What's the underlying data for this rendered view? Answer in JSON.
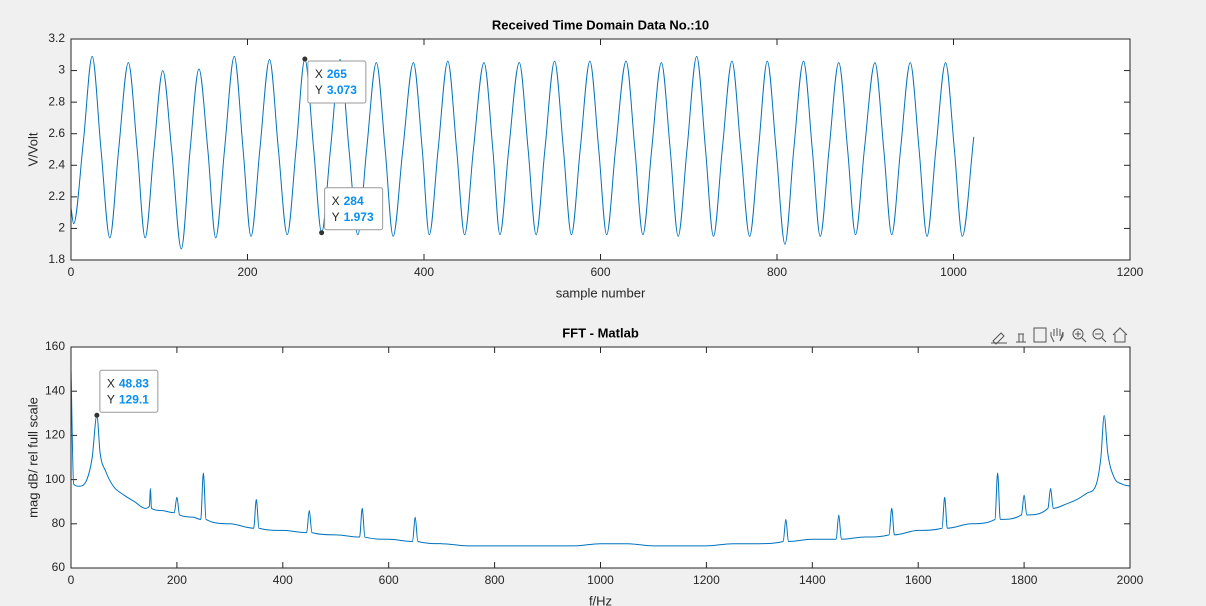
{
  "chart_data": [
    {
      "type": "line",
      "title": "Received Time Domain Data No.:10",
      "x_label": "sample number",
      "y_label": "V/Volt",
      "x": [
        0,
        3,
        14,
        24,
        34,
        44,
        54,
        65,
        75,
        84,
        94,
        104,
        114,
        125,
        135,
        145,
        155,
        164,
        174,
        185,
        195,
        204,
        214,
        225,
        235,
        245,
        255,
        265,
        275,
        284,
        294,
        305,
        315,
        325,
        335,
        346,
        356,
        365,
        376,
        388,
        398,
        406,
        416,
        427,
        437,
        446,
        456,
        468,
        478,
        486,
        496,
        508,
        518,
        527,
        537,
        548,
        558,
        567,
        577,
        588,
        598,
        607,
        617,
        629,
        639,
        648,
        658,
        669,
        679,
        688,
        698,
        709,
        719,
        728,
        738,
        749,
        759,
        769,
        779,
        789,
        799,
        809,
        819,
        830,
        840,
        849,
        859,
        870,
        880,
        889,
        899,
        911,
        921,
        930,
        940,
        951,
        961,
        970,
        980,
        991,
        1001,
        1010,
        1023
      ],
      "series": [
        {
          "color": "#0072bd",
          "values": [
            2.13,
            2.03,
            2.55,
            3.09,
            2.5,
            1.94,
            2.5,
            3.05,
            2.5,
            1.94,
            2.5,
            3.0,
            2.5,
            1.87,
            2.5,
            3.01,
            2.5,
            1.94,
            2.5,
            3.09,
            2.5,
            1.95,
            2.5,
            3.07,
            2.5,
            1.96,
            2.5,
            3.073,
            2.5,
            1.973,
            2.5,
            3.07,
            2.5,
            1.96,
            2.5,
            3.05,
            2.5,
            1.95,
            2.5,
            3.05,
            2.5,
            1.96,
            2.5,
            3.06,
            2.5,
            1.96,
            2.5,
            3.05,
            2.5,
            1.96,
            2.5,
            3.05,
            2.5,
            1.96,
            2.5,
            3.06,
            2.5,
            1.96,
            2.5,
            3.06,
            2.5,
            1.96,
            2.5,
            3.06,
            2.5,
            1.96,
            2.5,
            3.05,
            2.5,
            1.95,
            2.5,
            3.09,
            2.5,
            1.95,
            2.5,
            3.06,
            2.5,
            1.95,
            2.5,
            3.06,
            2.5,
            1.9,
            2.5,
            3.06,
            2.5,
            1.95,
            2.5,
            3.05,
            2.5,
            1.96,
            2.5,
            3.05,
            2.5,
            1.96,
            2.5,
            3.05,
            2.5,
            1.95,
            2.5,
            3.05,
            2.5,
            1.95,
            2.58
          ]
        }
      ],
      "xlim": [
        0,
        1200
      ],
      "xticks": [
        0,
        200,
        400,
        600,
        800,
        1000,
        1200
      ],
      "ylim": [
        1.8,
        3.2
      ],
      "yticks": [
        1.8,
        {
          "value": 2.0,
          "label": "2"
        },
        2.2,
        2.4,
        2.6,
        2.8,
        {
          "value": 3.0,
          "label": "3"
        },
        3.2
      ],
      "datatip_labels": [
        "X",
        "Y"
      ],
      "datatips": [
        {
          "x": 265,
          "y": 3.073
        },
        {
          "x": 284,
          "y": 1.973
        }
      ]
    },
    {
      "type": "line",
      "title": "FFT -  Matlab",
      "x_label": "f/Hz",
      "y_label": "mag dB/ rel full scale",
      "x": [
        0,
        5,
        15,
        30,
        40,
        48.83,
        55,
        65,
        80,
        100,
        120,
        140,
        148,
        150,
        152,
        170,
        195,
        200,
        205,
        230,
        245,
        250,
        255,
        300,
        345,
        350,
        355,
        400,
        445,
        450,
        455,
        500,
        545,
        550,
        555,
        600,
        645,
        650,
        655,
        700,
        750,
        800,
        850,
        900,
        950,
        1000,
        1050,
        1100,
        1150,
        1200,
        1250,
        1300,
        1345,
        1350,
        1355,
        1400,
        1445,
        1450,
        1455,
        1500,
        1545,
        1550,
        1555,
        1600,
        1645,
        1650,
        1655,
        1700,
        1745,
        1750,
        1755,
        1795,
        1800,
        1805,
        1845,
        1850,
        1855,
        1880,
        1900,
        1920,
        1935,
        1945,
        1951.2,
        1958,
        1970,
        1985,
        2000
      ],
      "series": [
        {
          "color": "#0072bd",
          "values": [
            150,
            98,
            97,
            100,
            110,
            129.1,
            112,
            104,
            97,
            93,
            90,
            87,
            88,
            96,
            87,
            86,
            85,
            92,
            84,
            83,
            82,
            103,
            82,
            80,
            78,
            91,
            78,
            77,
            76,
            86,
            76,
            75,
            74,
            87,
            74,
            73,
            72,
            83,
            72,
            71,
            70,
            70,
            70,
            70,
            70,
            71,
            71,
            70,
            70,
            70,
            71,
            71,
            72,
            82,
            72,
            73,
            73,
            84,
            73,
            74,
            75,
            87,
            75,
            77,
            78,
            92,
            78,
            80,
            82,
            103,
            82,
            84,
            93,
            84,
            87,
            96,
            87,
            89,
            91,
            94,
            97,
            110,
            129,
            112,
            101,
            98,
            97
          ]
        }
      ],
      "xlim": [
        0,
        2000
      ],
      "xticks": [
        0,
        200,
        400,
        600,
        800,
        1000,
        1200,
        1400,
        1600,
        1800,
        2000
      ],
      "ylim": [
        60,
        160
      ],
      "yticks": [
        60,
        80,
        100,
        120,
        140,
        160
      ],
      "datatip_labels": [
        "X",
        "Y"
      ],
      "datatips": [
        {
          "x": 48.83,
          "y": 129.1
        }
      ]
    }
  ]
}
